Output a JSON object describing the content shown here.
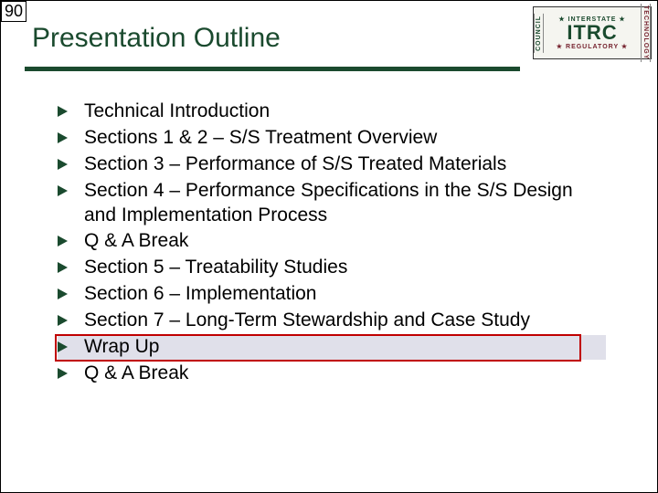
{
  "page_number": "90",
  "title": "Presentation Outline",
  "logo": {
    "left_text": "COUNCIL",
    "top_text": "INTERSTATE",
    "main_text": "ITRC",
    "bottom_text": "REGULATORY",
    "right_text": "TECHNOLOGY"
  },
  "items": [
    {
      "text": "Technical Introduction",
      "highlighted": false
    },
    {
      "text": "Sections 1 & 2 – S/S Treatment Overview",
      "highlighted": false
    },
    {
      "text": "Section 3 – Performance of S/S Treated Materials",
      "highlighted": false
    },
    {
      "text": "Section 4 – Performance Specifications in the S/S Design and Implementation Process",
      "highlighted": false
    },
    {
      "text": "Q & A Break",
      "highlighted": false
    },
    {
      "text": "Section 5 – Treatability Studies",
      "highlighted": false
    },
    {
      "text": "Section 6 – Implementation",
      "highlighted": false
    },
    {
      "text": "Section 7 – Long-Term Stewardship and Case Study",
      "highlighted": false
    },
    {
      "text": "Wrap Up",
      "highlighted": true
    },
    {
      "text": "Q & A Break",
      "highlighted": false
    }
  ],
  "colors": {
    "accent_green": "#1a4a2e",
    "accent_maroon": "#76232f",
    "highlight_bg": "#e0e0ea",
    "highlight_border": "#c00000",
    "text": "#000000",
    "background": "#ffffff"
  }
}
